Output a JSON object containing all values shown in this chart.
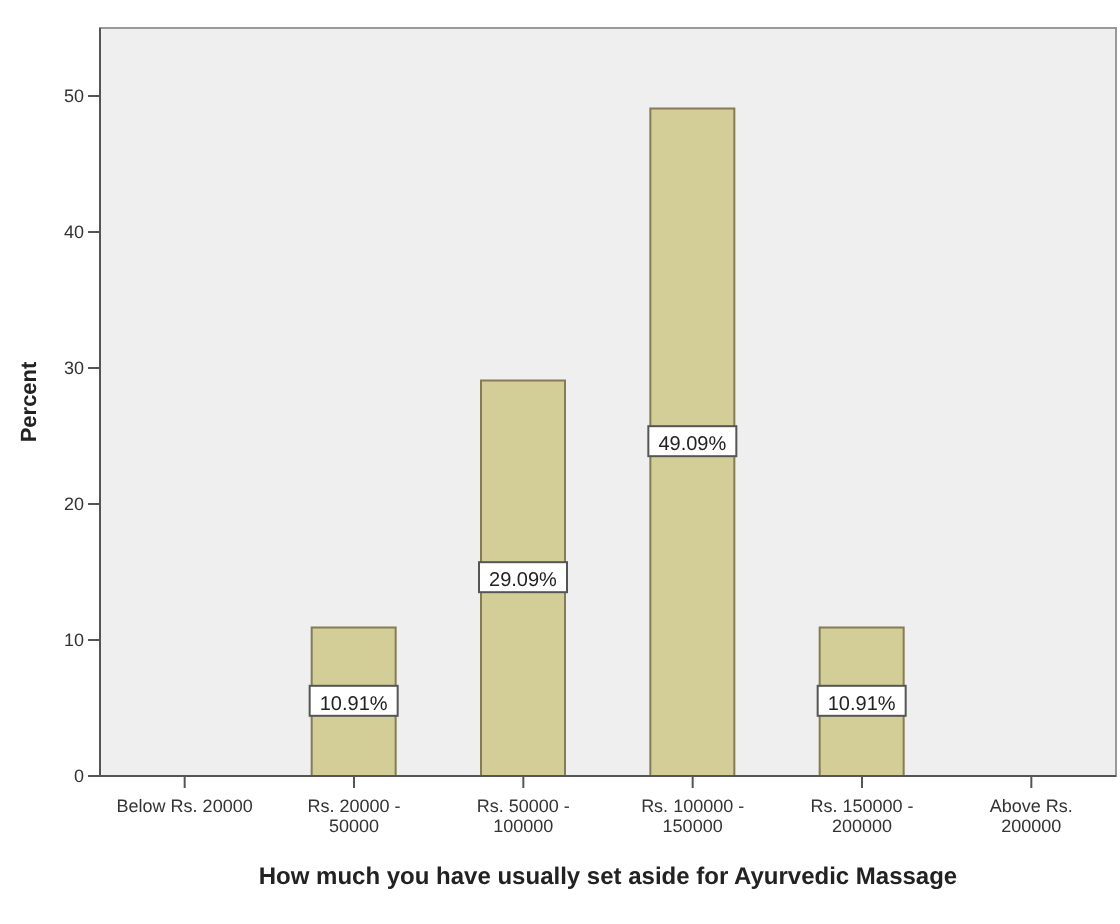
{
  "chart_data": {
    "type": "bar",
    "xlabel": "How much you have usually set aside for Ayurvedic Massage",
    "ylabel": "Percent",
    "categories": [
      "Below Rs. 20000",
      "Rs. 20000 - 50000",
      "Rs. 50000 - 100000",
      "Rs. 100000 - 150000",
      "Rs. 150000 - 200000",
      "Above Rs. 200000"
    ],
    "values": [
      0,
      10.91,
      29.09,
      49.09,
      10.91,
      0
    ],
    "value_labels": [
      null,
      "10.91%",
      "29.09%",
      "49.09%",
      "10.91%",
      null
    ],
    "color": "#d3cd98",
    "ylim": [
      0,
      55
    ],
    "yticks": [
      0,
      10,
      20,
      30,
      40,
      50
    ]
  }
}
